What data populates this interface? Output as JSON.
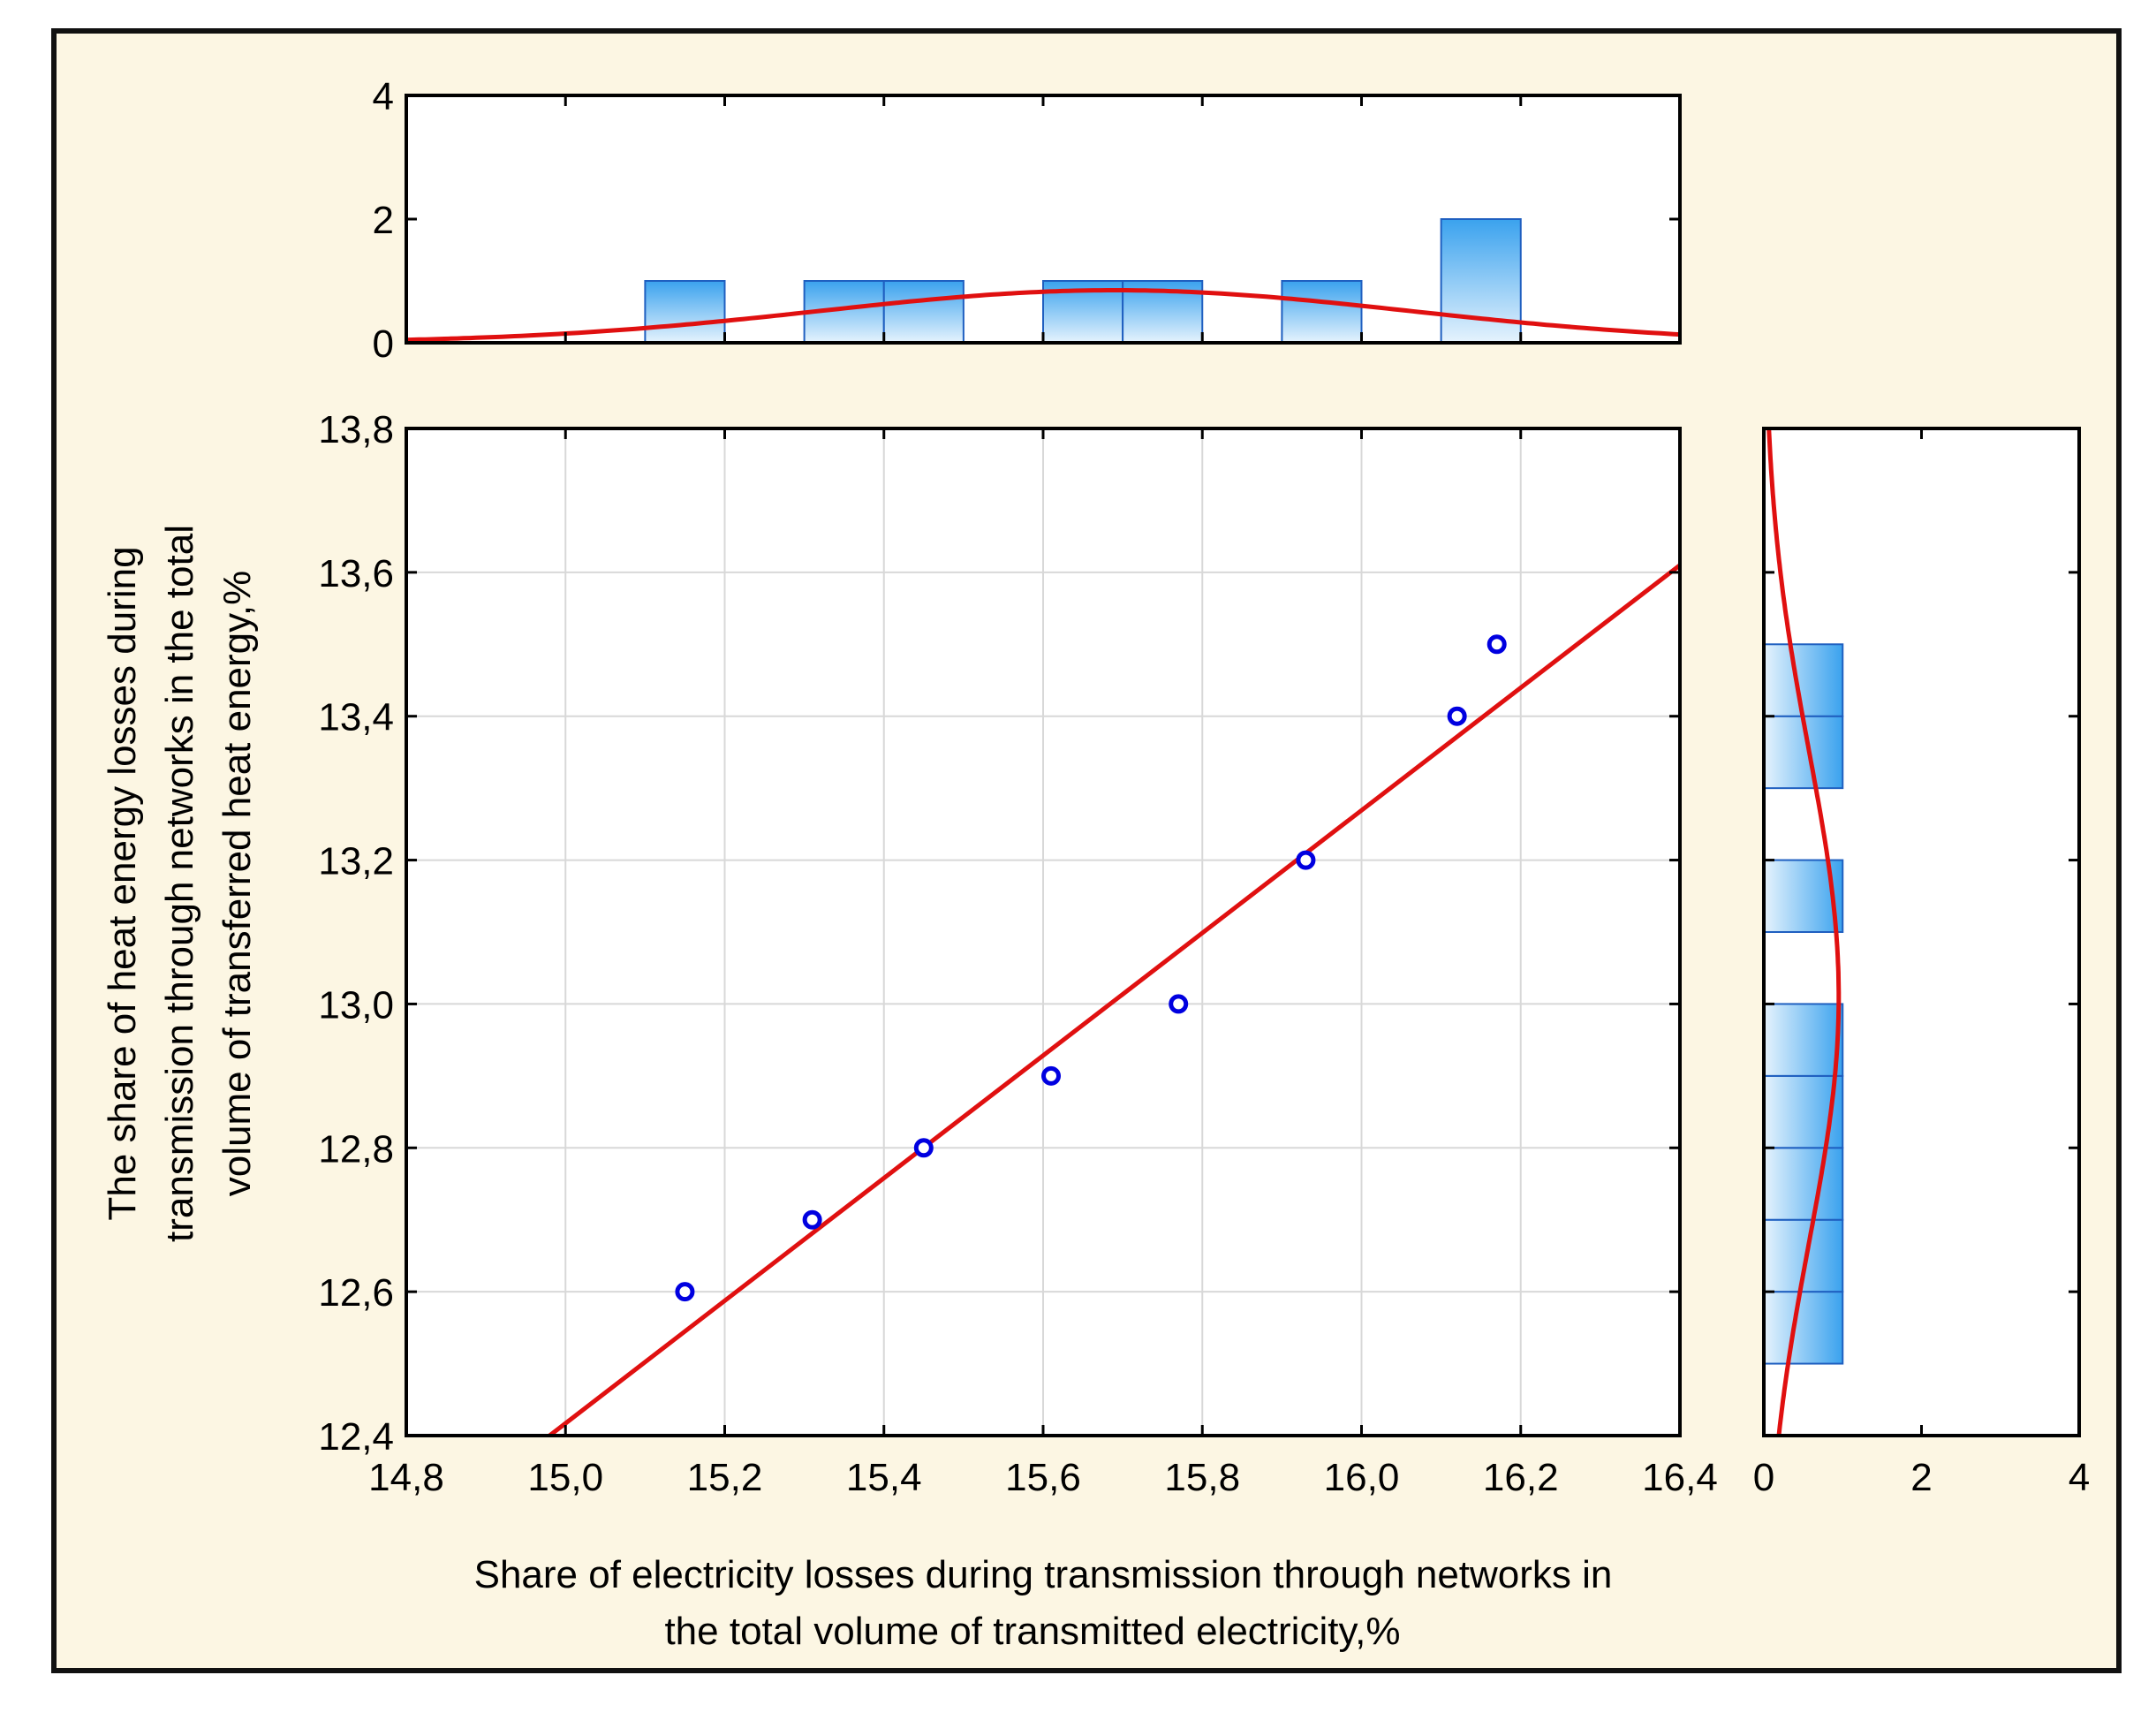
{
  "chart_data": {
    "type": "scatter",
    "title": "",
    "xlabel_lines": [
      "Share of electricity losses during transmission through networks in",
      "the total volume of transmitted electricity,%"
    ],
    "ylabel_lines": [
      "The share of heat energy losses during",
      "transmission through networks in the total",
      "volume of transferred heat energy,%"
    ],
    "xlim": [
      14.8,
      16.4
    ],
    "ylim": [
      12.4,
      13.8
    ],
    "x_ticks": [
      "14,8",
      "15,0",
      "15,2",
      "15,4",
      "15,6",
      "15,8",
      "16,0",
      "16,2",
      "16,4"
    ],
    "y_ticks": [
      "12,4",
      "12,6",
      "12,8",
      "13,0",
      "13,2",
      "13,4",
      "13,6",
      "13,8"
    ],
    "points": [
      {
        "x": 15.15,
        "y": 12.6
      },
      {
        "x": 15.31,
        "y": 12.7
      },
      {
        "x": 15.45,
        "y": 12.8
      },
      {
        "x": 15.61,
        "y": 12.9
      },
      {
        "x": 15.77,
        "y": 13.0
      },
      {
        "x": 15.93,
        "y": 13.2
      },
      {
        "x": 16.12,
        "y": 13.4
      },
      {
        "x": 16.17,
        "y": 13.5
      }
    ],
    "fit_line": {
      "x0": 14.98,
      "y0": 12.4,
      "x1": 16.4,
      "y1": 13.61
    },
    "colors": {
      "points": "#0000e0",
      "fit": "#e01010",
      "bar_fill_top": "#3aa2ee",
      "bar_fill_bottom": "#e6f3fd",
      "bar_edge": "#1f5fc0",
      "grid": "#d8d8d8"
    },
    "top_histogram": {
      "ylim": [
        0,
        4
      ],
      "y_ticks": [
        "0",
        "2",
        "4"
      ],
      "bins": [
        {
          "x0": 15.1,
          "x1": 15.2,
          "count": 1
        },
        {
          "x0": 15.3,
          "x1": 15.4,
          "count": 1
        },
        {
          "x0": 15.4,
          "x1": 15.5,
          "count": 1
        },
        {
          "x0": 15.6,
          "x1": 15.7,
          "count": 1
        },
        {
          "x0": 15.7,
          "x1": 15.8,
          "count": 1
        },
        {
          "x0": 15.9,
          "x1": 16.0,
          "count": 1
        },
        {
          "x0": 16.1,
          "x1": 16.2,
          "count": 2
        }
      ],
      "normal_curve": {
        "mean": 15.69,
        "sd": 0.37,
        "peak": 0.85
      }
    },
    "right_histogram": {
      "xlim": [
        0,
        4
      ],
      "x_ticks": [
        "0",
        "2",
        "4"
      ],
      "bins": [
        {
          "y0": 12.5,
          "y1": 12.6,
          "count": 1
        },
        {
          "y0": 12.6,
          "y1": 12.7,
          "count": 1
        },
        {
          "y0": 12.7,
          "y1": 12.8,
          "count": 1
        },
        {
          "y0": 12.8,
          "y1": 12.9,
          "count": 1
        },
        {
          "y0": 12.9,
          "y1": 13.0,
          "count": 1
        },
        {
          "y0": 13.1,
          "y1": 13.2,
          "count": 1
        },
        {
          "y0": 13.3,
          "y1": 13.4,
          "count": 1
        },
        {
          "y0": 13.4,
          "y1": 13.5,
          "count": 1
        }
      ],
      "normal_curve": {
        "mean": 13.01,
        "sd": 0.34,
        "peak": 0.95
      }
    }
  }
}
